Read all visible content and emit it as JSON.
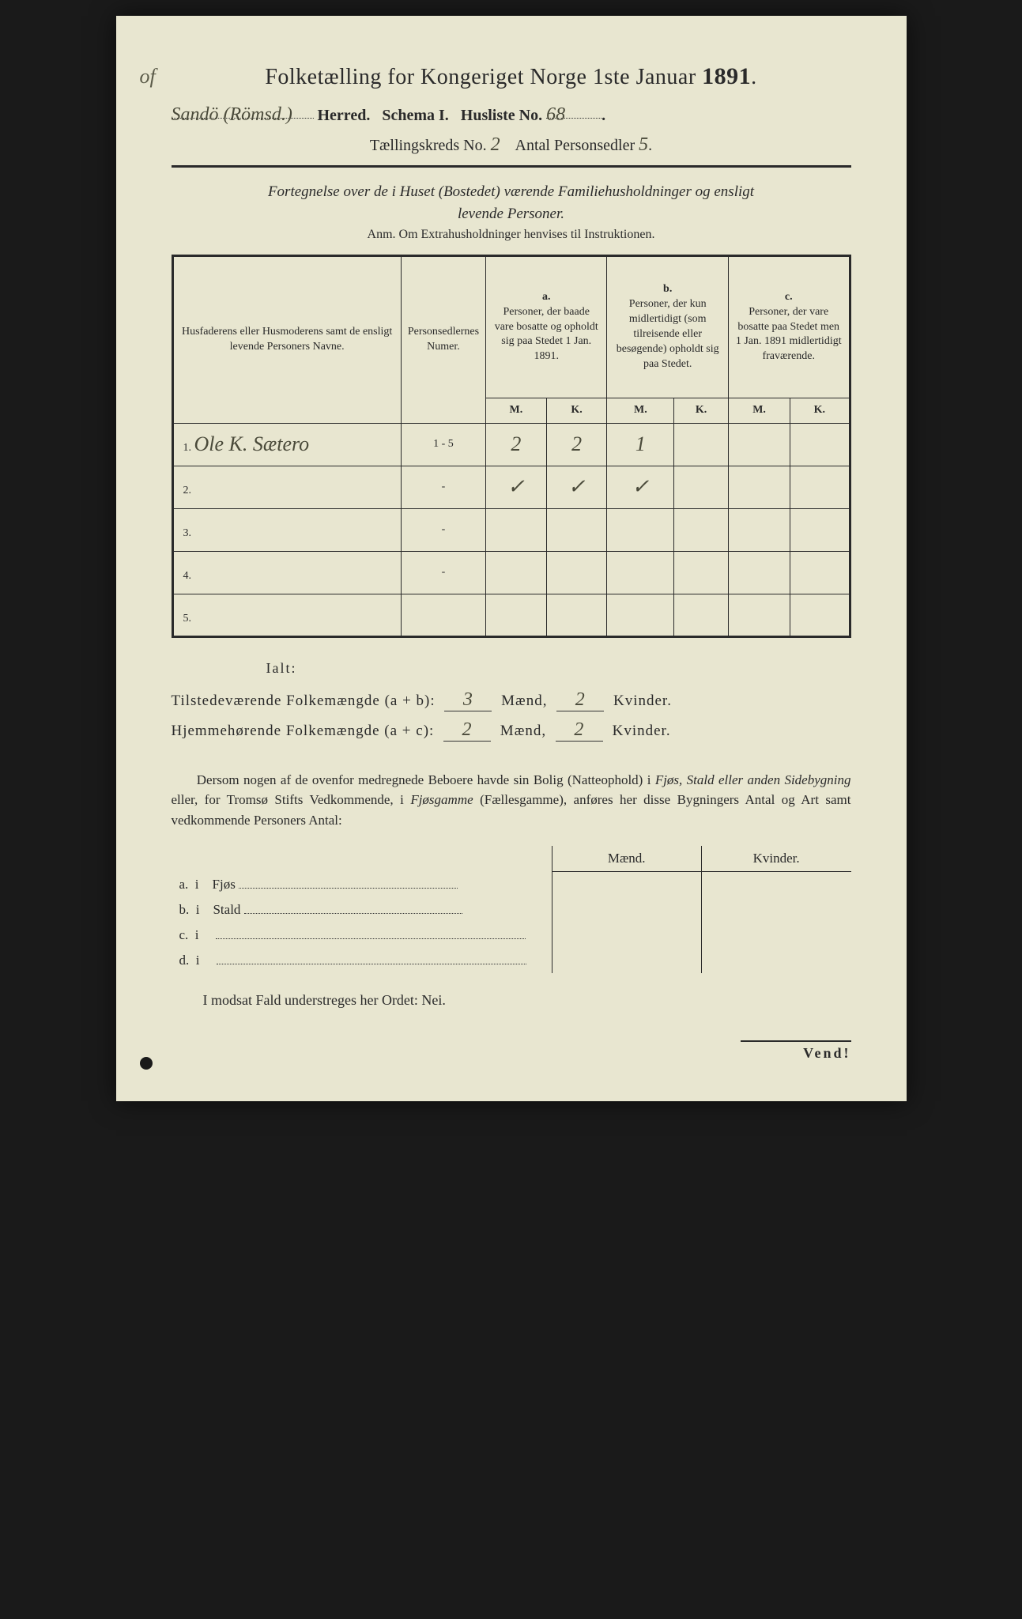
{
  "colors": {
    "page_bg": "#e8e6d0",
    "text": "#2a2a2a",
    "handwriting": "#4a4a3a",
    "frame_bg": "#1a1a1a"
  },
  "header": {
    "title_prefix": "Folketælling for Kongeriget Norge 1ste Januar",
    "year": "1891",
    "herred_handwritten": "Sandö (Römsd.)",
    "herred_label": "Herred.",
    "schema_label": "Schema I.",
    "husliste_label": "Husliste No.",
    "husliste_no": "68",
    "kreds_label": "Tællingskreds No.",
    "kreds_no": "2",
    "antal_label": "Antal Personsedler",
    "antal_no": "5"
  },
  "subtitle": {
    "line1": "Fortegnelse over de i Huset (Bostedet) værende Familiehusholdninger og ensligt",
    "line2": "levende Personer.",
    "anm": "Anm.  Om Extrahusholdninger henvises til Instruktionen."
  },
  "table": {
    "col1": "Husfaderens eller Husmoderens samt de ensligt levende Personers Navne.",
    "col2": "Personsedlernes Numer.",
    "col_a_label": "a.",
    "col_a": "Personer, der baade vare bosatte og opholdt sig paa Stedet 1 Jan. 1891.",
    "col_b_label": "b.",
    "col_b": "Personer, der kun midlertidigt (som tilreisende eller besøgende) opholdt sig paa Stedet.",
    "col_c_label": "c.",
    "col_c": "Personer, der vare bosatte paa Stedet men 1 Jan. 1891 midlertidigt fraværende.",
    "m": "M.",
    "k": "K.",
    "rows": [
      {
        "n": "1.",
        "name": "Ole K. Sætero",
        "numer": "1 - 5",
        "a_m": "2",
        "a_k": "2",
        "b_m": "1",
        "b_k": "",
        "c_m": "",
        "c_k": ""
      },
      {
        "n": "2.",
        "name": "",
        "numer": "-",
        "a_m": "✓",
        "a_k": "✓",
        "b_m": "✓",
        "b_k": "",
        "c_m": "",
        "c_k": ""
      },
      {
        "n": "3.",
        "name": "",
        "numer": "-",
        "a_m": "",
        "a_k": "",
        "b_m": "",
        "b_k": "",
        "c_m": "",
        "c_k": ""
      },
      {
        "n": "4.",
        "name": "",
        "numer": "-",
        "a_m": "",
        "a_k": "",
        "b_m": "",
        "b_k": "",
        "c_m": "",
        "c_k": ""
      },
      {
        "n": "5.",
        "name": "",
        "numer": "",
        "a_m": "",
        "a_k": "",
        "b_m": "",
        "b_k": "",
        "c_m": "",
        "c_k": ""
      }
    ]
  },
  "totals": {
    "ialt": "Ialt:",
    "tilstede_label": "Tilstedeværende Folkemængde (a + b):",
    "tilstede_m": "3",
    "tilstede_k": "2",
    "hjemme_label": "Hjemmehørende Folkemængde (a + c):",
    "hjemme_m": "2",
    "hjemme_k": "2",
    "maend": "Mænd,",
    "kvinder": "Kvinder."
  },
  "paragraph": {
    "text1": "Dersom nogen af de ovenfor medregnede Beboere havde sin Bolig (Natteophold) i ",
    "ital1": "Fjøs, Stald eller anden Sidebygning",
    "text2": " eller, for Tromsø Stifts Vedkommende, i ",
    "ital2": "Fjøsgamme",
    "text3": " (Fællesgamme), anføres her disse Bygningers ",
    "bold1": "Antal og Art",
    "text4": " samt vedkommende Personers Antal:"
  },
  "sidebuildings": {
    "maend": "Mænd.",
    "kvinder": "Kvinder.",
    "rows": [
      {
        "label": "a.",
        "i": "i",
        "type": "Fjøs"
      },
      {
        "label": "b.",
        "i": "i",
        "type": "Stald"
      },
      {
        "label": "c.",
        "i": "i",
        "type": ""
      },
      {
        "label": "d.",
        "i": "i",
        "type": ""
      }
    ]
  },
  "footer": {
    "nei": "I modsat Fald understreges her Ordet: Nei.",
    "vend": "Vend!"
  }
}
